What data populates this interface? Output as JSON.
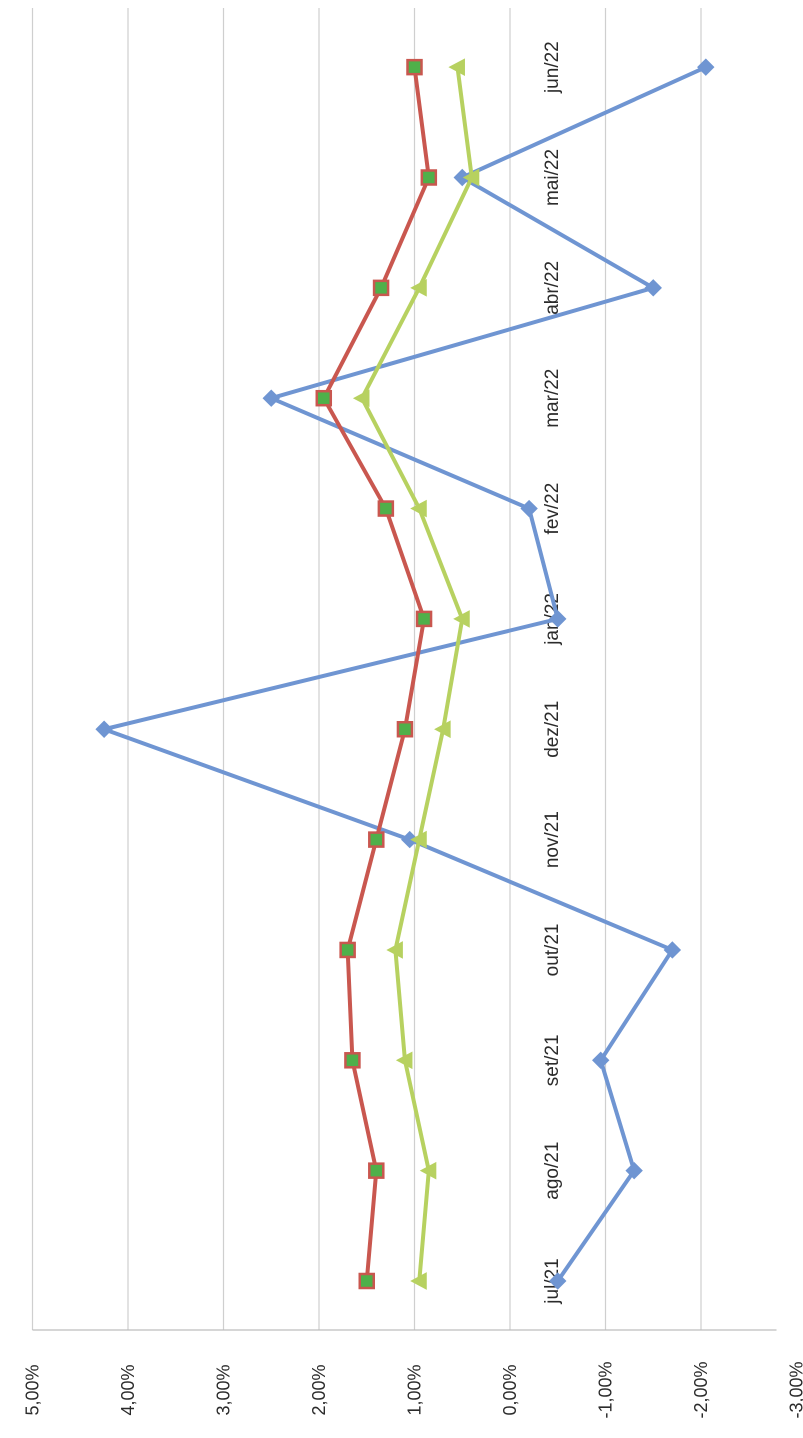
{
  "chart_data": {
    "type": "line",
    "orientation": "rotated-90-clockwise",
    "categories": [
      "jul/21",
      "ago/21",
      "set/21",
      "out/21",
      "nov/21",
      "dez/21",
      "jan/22",
      "fev/22",
      "mar/22",
      "abr/22",
      "mai/22",
      "jun/22"
    ],
    "y_ticks": [
      "5,00%",
      "4,00%",
      "3,00%",
      "2,00%",
      "1,00%",
      "0,00%",
      "-1,00%",
      "-2,00%",
      "-3,00%"
    ],
    "ylim": [
      -3,
      5
    ],
    "grid": true,
    "series": [
      {
        "color": "#6f95d2",
        "marker": "diamond",
        "values": [
          -0.5,
          -1.3,
          -0.95,
          -1.7,
          1.05,
          4.25,
          -0.5,
          -0.2,
          2.5,
          -1.5,
          0.5,
          -2.05
        ]
      },
      {
        "color": "#c9574f",
        "marker": "square",
        "marker_fill": "#4fb04a",
        "values": [
          1.5,
          1.4,
          1.65,
          1.7,
          1.4,
          1.1,
          0.9,
          1.3,
          1.95,
          1.35,
          0.85,
          1.0
        ]
      },
      {
        "color": "#b7d160",
        "marker": "triangle",
        "values": [
          0.95,
          0.85,
          1.1,
          1.2,
          0.95,
          0.7,
          0.5,
          0.95,
          1.55,
          0.95,
          0.4,
          0.55
        ]
      }
    ]
  }
}
